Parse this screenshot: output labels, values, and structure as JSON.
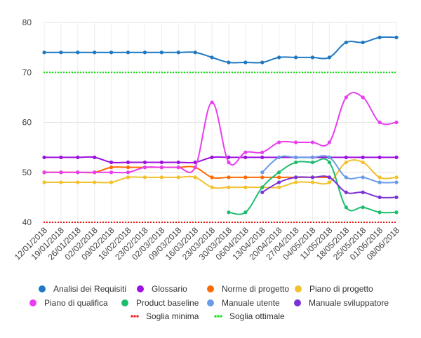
{
  "chart_data": {
    "type": "line",
    "x": [
      "12/01/2018",
      "19/01/2018",
      "26/01/2018",
      "02/02/2018",
      "09/02/2018",
      "16/02/2018",
      "23/02/2018",
      "02/03/2018",
      "09/03/2018",
      "16/03/2018",
      "23/03/2018",
      "30/03/2018",
      "06/04/2018",
      "13/04/2018",
      "20/04/2018",
      "27/04/2018",
      "04/05/2018",
      "11/05/2018",
      "18/05/2018",
      "25/05/2018",
      "01/06/2018",
      "08/06/2018"
    ],
    "ylim": [
      40,
      80
    ],
    "yticks": [
      40,
      50,
      60,
      70,
      80
    ],
    "grid": true,
    "legend_position": "bottom",
    "series": [
      {
        "name": "Analisi dei Requisiti",
        "color": "#1f78c1",
        "style": "solid",
        "values": [
          74,
          74,
          74,
          74,
          74,
          74,
          74,
          74,
          74,
          74,
          73,
          72,
          72,
          72,
          73,
          73,
          73,
          73,
          76,
          76,
          77,
          77
        ]
      },
      {
        "name": "Glossario",
        "color": "#9c10e0",
        "style": "solid",
        "values": [
          53,
          53,
          53,
          53,
          52,
          52,
          52,
          52,
          52,
          52,
          53,
          53,
          53,
          53,
          53,
          53,
          53,
          53,
          53,
          53,
          53,
          53
        ]
      },
      {
        "name": "Norme di progetto",
        "color": "#ff6a00",
        "style": "solid",
        "values": [
          50,
          50,
          50,
          50,
          51,
          51,
          51,
          51,
          51,
          51,
          49,
          49,
          49,
          49,
          49,
          49,
          49,
          49,
          null,
          null,
          null,
          null
        ]
      },
      {
        "name": "Piano di progetto",
        "color": "#f2c12e",
        "style": "solid",
        "values": [
          48,
          48,
          48,
          48,
          48,
          49,
          49,
          49,
          49,
          49,
          47,
          47,
          47,
          47,
          47,
          48,
          48,
          48,
          52,
          52,
          49,
          49
        ]
      },
      {
        "name": "Piano di qualifica",
        "color": "#e83ef0",
        "style": "solid",
        "values": [
          50,
          50,
          50,
          50,
          50,
          50,
          51,
          51,
          51,
          51,
          64,
          52,
          54,
          54,
          56,
          56,
          56,
          56,
          65,
          65,
          60,
          60
        ]
      },
      {
        "name": "Product baseline",
        "color": "#1ebd6e",
        "style": "solid",
        "values": [
          null,
          null,
          null,
          null,
          null,
          null,
          null,
          null,
          null,
          null,
          null,
          42,
          42,
          47,
          50,
          52,
          52,
          52,
          43,
          43,
          42,
          42
        ]
      },
      {
        "name": "Manuale utente",
        "color": "#6a9be8",
        "style": "solid",
        "values": [
          null,
          null,
          null,
          null,
          null,
          null,
          null,
          null,
          null,
          null,
          null,
          null,
          null,
          50,
          53,
          53,
          53,
          53,
          49,
          49,
          48,
          48
        ]
      },
      {
        "name": "Manuale sviluppatore",
        "color": "#7b33d6",
        "style": "solid",
        "values": [
          null,
          null,
          null,
          null,
          null,
          null,
          null,
          null,
          null,
          null,
          null,
          null,
          null,
          46,
          48,
          49,
          49,
          49,
          46,
          46,
          45,
          45
        ]
      },
      {
        "name": "Soglia minima",
        "color": "#ee1111",
        "style": "dotted",
        "values": [
          40,
          40,
          40,
          40,
          40,
          40,
          40,
          40,
          40,
          40,
          40,
          40,
          40,
          40,
          40,
          40,
          40,
          40,
          40,
          40,
          40,
          40
        ]
      },
      {
        "name": "Soglia ottimale",
        "color": "#11dd11",
        "style": "dotted",
        "values": [
          70,
          70,
          70,
          70,
          70,
          70,
          70,
          70,
          70,
          70,
          70,
          70,
          70,
          70,
          70,
          70,
          70,
          70,
          70,
          70,
          70,
          70
        ]
      }
    ]
  }
}
